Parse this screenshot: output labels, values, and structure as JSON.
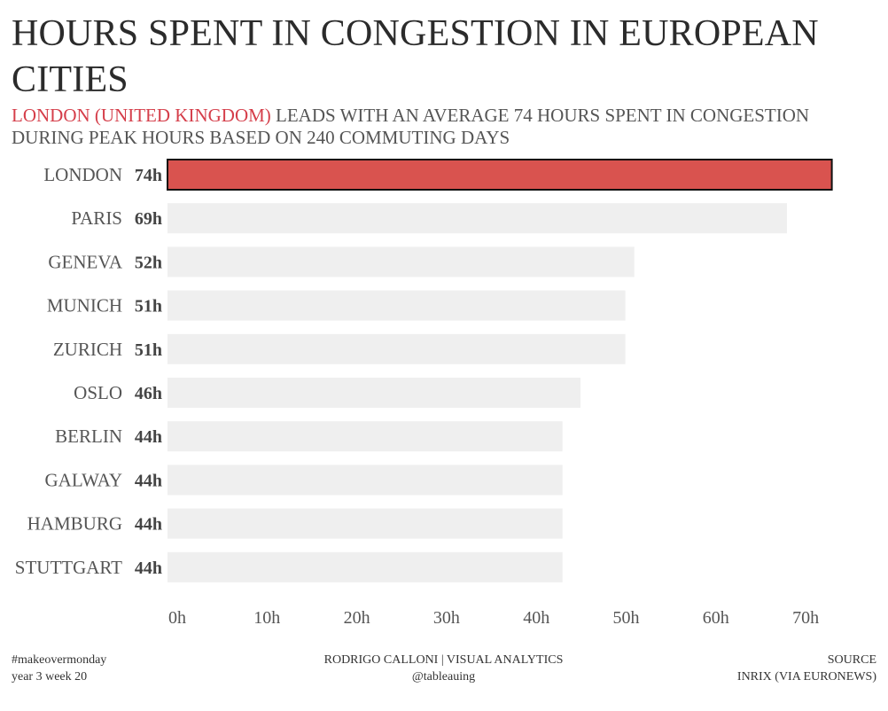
{
  "header": {
    "title": "HOURS SPENT IN CONGESTION IN EUROPEAN CITIES",
    "subtitle_highlight": "LONDON (UNITED KINGDOM)",
    "subtitle_rest": " LEADS WITH AN AVERAGE 74 HOURS SPENT IN CONGESTION DURING PEAK HOURS BASED ON 240 COMMUTING DAYS"
  },
  "chart_data": {
    "type": "bar",
    "orientation": "horizontal",
    "categories": [
      "LONDON",
      "PARIS",
      "GENEVA",
      "MUNICH",
      "ZURICH",
      "OSLO",
      "BERLIN",
      "GALWAY",
      "HAMBURG",
      "STUTTGART"
    ],
    "values": [
      74,
      69,
      52,
      51,
      51,
      46,
      44,
      44,
      44,
      44
    ],
    "value_labels": [
      "74h",
      "69h",
      "52h",
      "51h",
      "51h",
      "46h",
      "44h",
      "44h",
      "44h",
      "44h"
    ],
    "xlim": [
      0,
      75
    ],
    "xticks": [
      0,
      10,
      20,
      30,
      40,
      50,
      60,
      70
    ],
    "xtick_labels": [
      "0h",
      "10h",
      "20h",
      "30h",
      "40h",
      "50h",
      "60h",
      "70h"
    ],
    "highlight_category": "LONDON",
    "grid": false,
    "colors": {
      "highlight": "#d9534f",
      "highlight_border": "#111111",
      "bar": "#efefef"
    }
  },
  "footer": {
    "left_line1": "#makeovermonday",
    "left_line2": "year 3 week 20",
    "center_line1": "RODRIGO CALLONI | VISUAL ANALYTICS",
    "center_line2": "@tableauing",
    "right_line1": "SOURCE",
    "right_line2": "INRIX (VIA EURONEWS)"
  }
}
